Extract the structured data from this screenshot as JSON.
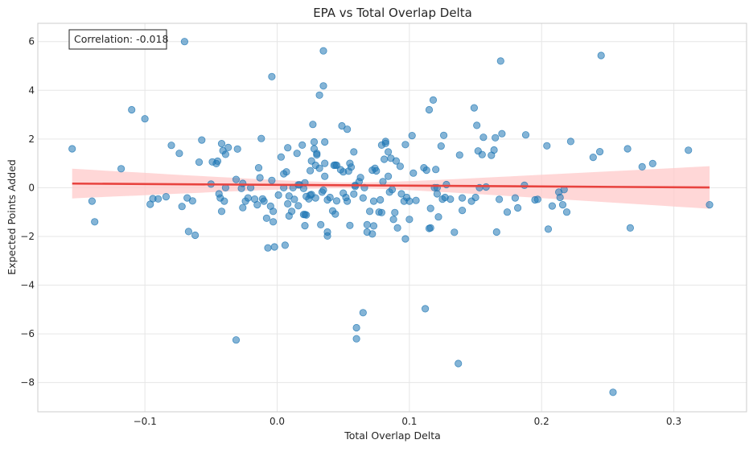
{
  "chart_data": {
    "type": "scatter",
    "title": "EPA vs Total Overlap Delta",
    "xlabel": "Total Overlap Delta",
    "ylabel": "Expected Points Added",
    "xlim": [
      -0.181,
      0.355
    ],
    "ylim": [
      -9.2,
      6.75
    ],
    "x_ticks": [
      -0.1,
      0.0,
      0.1,
      0.2,
      0.3
    ],
    "x_tick_labels": [
      "−0.1",
      "0.0",
      "0.1",
      "0.2",
      "0.3"
    ],
    "y_ticks": [
      -8,
      -6,
      -4,
      -2,
      0,
      2,
      4,
      6
    ],
    "y_tick_labels": [
      "−8",
      "−6",
      "−4",
      "−2",
      "0",
      "2",
      "4",
      "6"
    ],
    "grid": true,
    "annotation": "Correlation: -0.018",
    "point_color": "#1f77b4",
    "fit_color": "#e8433f",
    "band_color": "#ffc9c9",
    "regression": {
      "x": [
        -0.155,
        0.327
      ],
      "y": [
        0.17,
        0.01
      ],
      "ci_upper_at_ends": [
        0.82,
        0.87
      ],
      "ci_lower_at_ends": [
        -0.4,
        -0.88
      ]
    },
    "points": [
      [
        -0.155,
        1.6
      ],
      [
        -0.14,
        -0.55
      ],
      [
        -0.138,
        -1.4
      ],
      [
        -0.118,
        0.78
      ],
      [
        -0.11,
        3.2
      ],
      [
        -0.1,
        2.83
      ],
      [
        -0.096,
        -0.68
      ],
      [
        -0.094,
        -0.45
      ],
      [
        -0.09,
        -0.46
      ],
      [
        -0.084,
        -0.37
      ],
      [
        -0.08,
        1.74
      ],
      [
        -0.074,
        1.41
      ],
      [
        -0.072,
        -0.77
      ],
      [
        -0.07,
        6.0
      ],
      [
        -0.068,
        -0.42
      ],
      [
        -0.067,
        -1.8
      ],
      [
        -0.064,
        -0.54
      ],
      [
        -0.062,
        -1.95
      ],
      [
        -0.059,
        1.05
      ],
      [
        -0.057,
        1.96
      ],
      [
        -0.05,
        0.15
      ],
      [
        -0.049,
        1.06
      ],
      [
        -0.046,
        0.99
      ],
      [
        -0.045,
        1.09
      ],
      [
        -0.044,
        -0.25
      ],
      [
        -0.043,
        -0.42
      ],
      [
        -0.042,
        -0.97
      ],
      [
        -0.042,
        1.81
      ],
      [
        -0.041,
        1.52
      ],
      [
        -0.04,
        -0.55
      ],
      [
        -0.039,
        0.0
      ],
      [
        -0.039,
        1.37
      ],
      [
        -0.037,
        1.65
      ],
      [
        -0.031,
        0.34
      ],
      [
        -0.031,
        -6.25
      ],
      [
        -0.03,
        1.59
      ],
      [
        -0.027,
        -0.03
      ],
      [
        -0.026,
        -0.82
      ],
      [
        -0.026,
        0.18
      ],
      [
        -0.024,
        -0.55
      ],
      [
        -0.022,
        -0.42
      ],
      [
        -0.02,
        0.0
      ],
      [
        -0.017,
        -0.47
      ],
      [
        -0.015,
        -0.7
      ],
      [
        -0.014,
        0.82
      ],
      [
        -0.013,
        0.41
      ],
      [
        -0.012,
        2.02
      ],
      [
        -0.011,
        -0.46
      ],
      [
        -0.01,
        -0.55
      ],
      [
        -0.008,
        -1.25
      ],
      [
        -0.007,
        -2.47
      ],
      [
        -0.005,
        -0.76
      ],
      [
        -0.004,
        4.56
      ],
      [
        -0.004,
        0.3
      ],
      [
        -0.003,
        -0.97
      ],
      [
        -0.003,
        -1.4
      ],
      [
        -0.002,
        -2.43
      ],
      [
        0.001,
        -0.3
      ],
      [
        0.003,
        1.26
      ],
      [
        0.005,
        0.0
      ],
      [
        0.005,
        0.57
      ],
      [
        0.006,
        -2.36
      ],
      [
        0.007,
        0.65
      ],
      [
        0.008,
        -0.66
      ],
      [
        0.008,
        1.64
      ],
      [
        0.009,
        -0.34
      ],
      [
        0.009,
        -1.16
      ],
      [
        0.011,
        -0.97
      ],
      [
        0.012,
        0.0
      ],
      [
        0.013,
        -0.48
      ],
      [
        0.015,
        1.41
      ],
      [
        0.016,
        0.12
      ],
      [
        0.016,
        -0.74
      ],
      [
        0.017,
        0.12
      ],
      [
        0.019,
        1.75
      ],
      [
        0.02,
        -0.03
      ],
      [
        0.02,
        -1.1
      ],
      [
        0.021,
        0.2
      ],
      [
        0.021,
        -1.56
      ],
      [
        0.021,
        -1.1
      ],
      [
        0.022,
        -0.36
      ],
      [
        0.022,
        -1.12
      ],
      [
        0.024,
        -0.46
      ],
      [
        0.025,
        -0.3
      ],
      [
        0.025,
        0.7
      ],
      [
        0.026,
        -0.28
      ],
      [
        0.026,
        1.1
      ],
      [
        0.027,
        2.6
      ],
      [
        0.028,
        1.6
      ],
      [
        0.028,
        1.88
      ],
      [
        0.029,
        0.92
      ],
      [
        0.029,
        -0.42
      ],
      [
        0.03,
        1.41
      ],
      [
        0.03,
        1.35
      ],
      [
        0.032,
        3.8
      ],
      [
        0.032,
        0.8
      ],
      [
        0.033,
        -1.52
      ],
      [
        0.034,
        -0.18
      ],
      [
        0.035,
        5.62
      ],
      [
        0.035,
        4.18
      ],
      [
        0.035,
        -0.1
      ],
      [
        0.036,
        1.0
      ],
      [
        0.036,
        1.88
      ],
      [
        0.036,
        0.47
      ],
      [
        0.038,
        -1.82
      ],
      [
        0.038,
        -0.5
      ],
      [
        0.038,
        -1.98
      ],
      [
        0.04,
        -0.4
      ],
      [
        0.042,
        -0.95
      ],
      [
        0.043,
        0.92
      ],
      [
        0.044,
        -1.08
      ],
      [
        0.044,
        0.93
      ],
      [
        0.045,
        -0.54
      ],
      [
        0.045,
        0.92
      ],
      [
        0.048,
        0.74
      ],
      [
        0.049,
        2.54
      ],
      [
        0.05,
        0.65
      ],
      [
        0.05,
        -0.22
      ],
      [
        0.052,
        -0.4
      ],
      [
        0.053,
        -0.55
      ],
      [
        0.053,
        2.4
      ],
      [
        0.054,
        0.68
      ],
      [
        0.055,
        1.0
      ],
      [
        0.055,
        -1.55
      ],
      [
        0.056,
        0.85
      ],
      [
        0.058,
        -0.26
      ],
      [
        0.058,
        1.47
      ],
      [
        0.059,
        0.1
      ],
      [
        0.059,
        0.05
      ],
      [
        0.06,
        -5.75
      ],
      [
        0.06,
        -6.2
      ],
      [
        0.062,
        0.25
      ],
      [
        0.063,
        0.42
      ],
      [
        0.065,
        -5.13
      ],
      [
        0.065,
        -0.42
      ],
      [
        0.066,
        0.0
      ],
      [
        0.068,
        -1.52
      ],
      [
        0.068,
        -1.82
      ],
      [
        0.07,
        -0.97
      ],
      [
        0.072,
        -1.9
      ],
      [
        0.072,
        0.72
      ],
      [
        0.073,
        -1.57
      ],
      [
        0.073,
        -0.55
      ],
      [
        0.074,
        0.8
      ],
      [
        0.075,
        0.69
      ],
      [
        0.077,
        -1.0
      ],
      [
        0.078,
        -0.5
      ],
      [
        0.079,
        1.75
      ],
      [
        0.079,
        -1.02
      ],
      [
        0.08,
        0.25
      ],
      [
        0.081,
        1.17
      ],
      [
        0.082,
        1.9
      ],
      [
        0.082,
        1.82
      ],
      [
        0.084,
        0.47
      ],
      [
        0.084,
        1.47
      ],
      [
        0.085,
        -0.18
      ],
      [
        0.086,
        1.21
      ],
      [
        0.087,
        -0.08
      ],
      [
        0.088,
        -1.3
      ],
      [
        0.089,
        -1.02
      ],
      [
        0.09,
        1.1
      ],
      [
        0.091,
        -1.65
      ],
      [
        0.093,
        0.88
      ],
      [
        0.094,
        -0.25
      ],
      [
        0.096,
        -0.55
      ],
      [
        0.097,
        1.77
      ],
      [
        0.097,
        -2.1
      ],
      [
        0.098,
        -0.4
      ],
      [
        0.1,
        -0.55
      ],
      [
        0.1,
        -1.3
      ],
      [
        0.102,
        2.14
      ],
      [
        0.103,
        0.6
      ],
      [
        0.105,
        -0.52
      ],
      [
        0.111,
        0.82
      ],
      [
        0.112,
        -4.97
      ],
      [
        0.113,
        0.72
      ],
      [
        0.115,
        -1.67
      ],
      [
        0.115,
        3.2
      ],
      [
        0.116,
        -0.85
      ],
      [
        0.116,
        -1.65
      ],
      [
        0.118,
        3.6
      ],
      [
        0.119,
        0.0
      ],
      [
        0.12,
        0.75
      ],
      [
        0.121,
        0.0
      ],
      [
        0.121,
        -0.25
      ],
      [
        0.122,
        -1.2
      ],
      [
        0.124,
        1.71
      ],
      [
        0.125,
        -0.47
      ],
      [
        0.126,
        2.15
      ],
      [
        0.127,
        -0.4
      ],
      [
        0.128,
        0.13
      ],
      [
        0.131,
        -0.47
      ],
      [
        0.134,
        -1.83
      ],
      [
        0.137,
        -7.22
      ],
      [
        0.138,
        1.34
      ],
      [
        0.14,
        -0.42
      ],
      [
        0.14,
        -0.93
      ],
      [
        0.147,
        -0.55
      ],
      [
        0.149,
        3.28
      ],
      [
        0.15,
        -0.4
      ],
      [
        0.151,
        2.56
      ],
      [
        0.152,
        1.51
      ],
      [
        0.153,
        0.0
      ],
      [
        0.155,
        1.36
      ],
      [
        0.156,
        2.07
      ],
      [
        0.158,
        0.03
      ],
      [
        0.162,
        1.33
      ],
      [
        0.164,
        1.55
      ],
      [
        0.165,
        2.05
      ],
      [
        0.166,
        -1.82
      ],
      [
        0.168,
        -0.48
      ],
      [
        0.169,
        5.2
      ],
      [
        0.17,
        2.22
      ],
      [
        0.174,
        -1.0
      ],
      [
        0.18,
        -0.42
      ],
      [
        0.182,
        -0.83
      ],
      [
        0.187,
        0.1
      ],
      [
        0.188,
        2.17
      ],
      [
        0.195,
        -0.5
      ],
      [
        0.197,
        -0.48
      ],
      [
        0.204,
        1.72
      ],
      [
        0.205,
        -1.7
      ],
      [
        0.208,
        -0.75
      ],
      [
        0.213,
        -0.18
      ],
      [
        0.214,
        -0.4
      ],
      [
        0.216,
        -0.7
      ],
      [
        0.217,
        -0.08
      ],
      [
        0.219,
        -1.0
      ],
      [
        0.222,
        1.9
      ],
      [
        0.239,
        1.25
      ],
      [
        0.244,
        1.48
      ],
      [
        0.245,
        5.43
      ],
      [
        0.254,
        -8.4
      ],
      [
        0.265,
        1.6
      ],
      [
        0.267,
        -1.65
      ],
      [
        0.276,
        0.86
      ],
      [
        0.284,
        0.99
      ],
      [
        0.311,
        1.54
      ],
      [
        0.327,
        -0.7
      ]
    ]
  }
}
